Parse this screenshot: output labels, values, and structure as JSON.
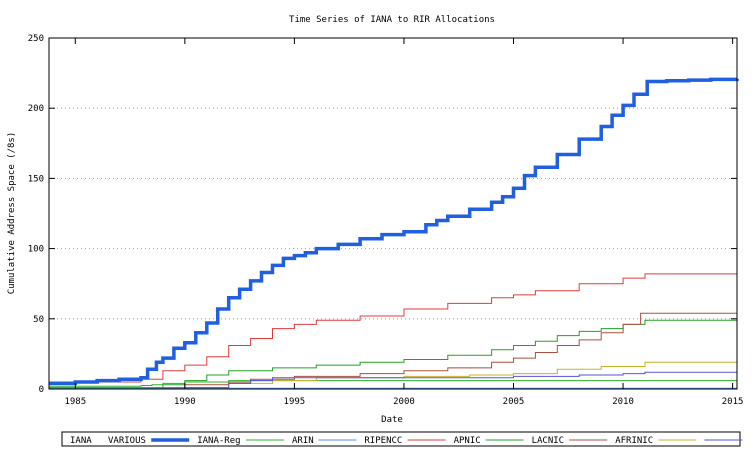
{
  "chart_data": {
    "type": "line",
    "title": "Time Series of IANA to RIR Allocations",
    "xlabel": "Date",
    "ylabel": "Cumulative Address Space (/8s)",
    "xlim": [
      1983.8,
      2015.2
    ],
    "ylim": [
      0,
      250
    ],
    "xticks": [
      1985,
      1990,
      1995,
      2000,
      2005,
      2010,
      2015
    ],
    "yticks": [
      0,
      50,
      100,
      150,
      200,
      250
    ],
    "grid": "horizontal-dotted",
    "legend_placement": "bottom",
    "legend_title": "IANA",
    "series": [
      {
        "name": "VARIOUS",
        "color": "#1f5fe0",
        "width": 3.5,
        "points": [
          [
            1983.8,
            4
          ],
          [
            1985,
            5
          ],
          [
            1986,
            6
          ],
          [
            1987,
            7
          ],
          [
            1988,
            8
          ],
          [
            1988.3,
            14
          ],
          [
            1988.7,
            19
          ],
          [
            1989,
            22
          ],
          [
            1989.5,
            29
          ],
          [
            1990,
            33
          ],
          [
            1990.5,
            40
          ],
          [
            1991,
            47
          ],
          [
            1991.5,
            57
          ],
          [
            1992,
            65
          ],
          [
            1992.5,
            71
          ],
          [
            1993,
            77
          ],
          [
            1993.5,
            83
          ],
          [
            1994,
            88
          ],
          [
            1994.5,
            93
          ],
          [
            1995,
            95
          ],
          [
            1995.5,
            97
          ],
          [
            1996,
            100
          ],
          [
            1997,
            103
          ],
          [
            1998,
            107
          ],
          [
            1999,
            110
          ],
          [
            2000,
            112
          ],
          [
            2001,
            117
          ],
          [
            2001.5,
            120
          ],
          [
            2002,
            123
          ],
          [
            2003,
            128
          ],
          [
            2004,
            133
          ],
          [
            2004.5,
            137
          ],
          [
            2005,
            143
          ],
          [
            2005.5,
            152
          ],
          [
            2006,
            158
          ],
          [
            2007,
            167
          ],
          [
            2008,
            178
          ],
          [
            2009,
            187
          ],
          [
            2009.5,
            195
          ],
          [
            2010,
            202
          ],
          [
            2010.5,
            210
          ],
          [
            2011.1,
            219
          ],
          [
            2012,
            219.5
          ],
          [
            2013,
            220
          ],
          [
            2014,
            220.5
          ],
          [
            2015.2,
            221
          ]
        ]
      },
      {
        "name": "IANA-Reg",
        "color": "#2db32d",
        "width": 1,
        "points": [
          [
            1983.8,
            2
          ],
          [
            1988,
            2.5
          ],
          [
            1988.5,
            3
          ],
          [
            1989,
            4
          ],
          [
            1990,
            5
          ],
          [
            1992,
            6
          ],
          [
            2015.2,
            6
          ]
        ]
      },
      {
        "name": "ARIN",
        "color": "#4a90e2",
        "width": 1,
        "points": [
          [
            1983.8,
            0.5
          ],
          [
            2015.2,
            0.5
          ]
        ]
      },
      {
        "name": "RIPENCC",
        "color": "#e03b3b",
        "width": 1,
        "points": [
          [
            1983.8,
            5
          ],
          [
            1987,
            5
          ],
          [
            1988,
            7
          ],
          [
            1989,
            13
          ],
          [
            1990,
            17
          ],
          [
            1991,
            23
          ],
          [
            1992,
            31
          ],
          [
            1993,
            36
          ],
          [
            1994,
            43
          ],
          [
            1995,
            46
          ],
          [
            1996,
            49
          ],
          [
            1998,
            52
          ],
          [
            2000,
            57
          ],
          [
            2002,
            61
          ],
          [
            2004,
            65
          ],
          [
            2005,
            67
          ],
          [
            2006,
            70
          ],
          [
            2008,
            75
          ],
          [
            2010,
            79
          ],
          [
            2011,
            82
          ],
          [
            2015.2,
            83
          ]
        ]
      },
      {
        "name": "APNIC",
        "color": "#22a122",
        "width": 1,
        "points": [
          [
            1983.8,
            1
          ],
          [
            1988,
            1
          ],
          [
            1989,
            3
          ],
          [
            1990,
            6
          ],
          [
            1991,
            10
          ],
          [
            1992,
            13
          ],
          [
            1994,
            15
          ],
          [
            1996,
            17
          ],
          [
            1998,
            19
          ],
          [
            2000,
            21
          ],
          [
            2002,
            24
          ],
          [
            2004,
            28
          ],
          [
            2005,
            31
          ],
          [
            2006,
            34
          ],
          [
            2007,
            38
          ],
          [
            2008,
            41
          ],
          [
            2009,
            43
          ],
          [
            2010,
            46
          ],
          [
            2011,
            49
          ],
          [
            2015.2,
            49
          ]
        ]
      },
      {
        "name": "LACNIC",
        "color": "#a5513f",
        "width": 1,
        "points": [
          [
            1983.8,
            0
          ],
          [
            1989,
            1
          ],
          [
            1990,
            3
          ],
          [
            1992,
            5
          ],
          [
            1993,
            7
          ],
          [
            1995,
            9
          ],
          [
            1998,
            11
          ],
          [
            2000,
            13
          ],
          [
            2002,
            15
          ],
          [
            2004,
            19
          ],
          [
            2005,
            22
          ],
          [
            2006,
            26
          ],
          [
            2007,
            31
          ],
          [
            2008,
            35
          ],
          [
            2009,
            40
          ],
          [
            2010,
            46
          ],
          [
            2010.8,
            54
          ],
          [
            2015.2,
            54
          ]
        ]
      },
      {
        "name": "AFRINIC",
        "color": "#c7b12b",
        "width": 1,
        "points": [
          [
            1983.8,
            0
          ],
          [
            1990,
            1
          ],
          [
            1992,
            4
          ],
          [
            1994,
            6
          ],
          [
            1996,
            8
          ],
          [
            2000,
            9
          ],
          [
            2003,
            10
          ],
          [
            2005,
            11
          ],
          [
            2007,
            14
          ],
          [
            2009,
            16
          ],
          [
            2011,
            19
          ],
          [
            2015.2,
            20
          ]
        ]
      },
      {
        "name": "",
        "color": "#5553d8",
        "width": 1,
        "points": [
          [
            1983.8,
            0
          ],
          [
            1990,
            1
          ],
          [
            1992,
            4
          ],
          [
            1993,
            6
          ],
          [
            1994,
            8
          ],
          [
            2000,
            8
          ],
          [
            2005,
            9
          ],
          [
            2008,
            10
          ],
          [
            2010,
            11
          ],
          [
            2011,
            12
          ],
          [
            2015.2,
            12
          ]
        ]
      }
    ]
  }
}
